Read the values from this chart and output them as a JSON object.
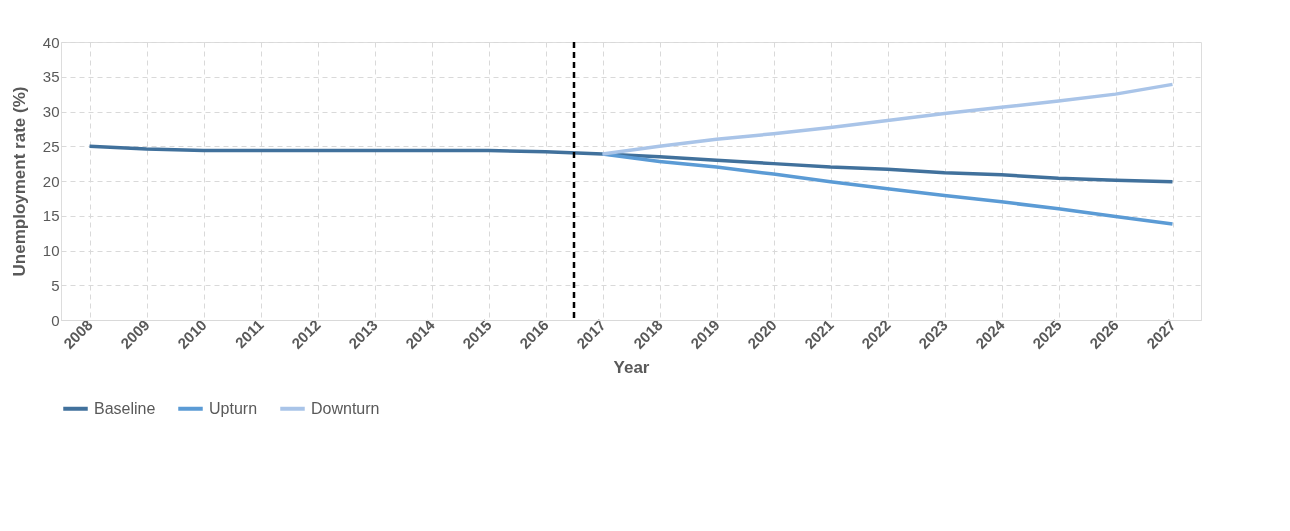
{
  "chart_data": {
    "type": "line",
    "xlabel": "Year",
    "ylabel": "Unemployment rate (%)",
    "xlim": [
      2007.5,
      2027.5
    ],
    "xticks": [
      2008,
      2009,
      2010,
      2011,
      2012,
      2013,
      2014,
      2015,
      2016,
      2017,
      2018,
      2019,
      2020,
      2021,
      2022,
      2023,
      2024,
      2025,
      2026,
      2027
    ],
    "ylim": [
      0,
      40
    ],
    "yticks": [
      0,
      5,
      10,
      15,
      20,
      25,
      30,
      35,
      40
    ],
    "grid": true,
    "legend": "bottom",
    "line_style": "solid",
    "marker": "none",
    "ref_lines": [
      {
        "axis": "x",
        "value": 2016.5,
        "color": "#000000",
        "line_style": "dashed"
      }
    ],
    "series": [
      {
        "name": "Baseline",
        "color": "#41719c",
        "x": [
          2008,
          2009,
          2010,
          2011,
          2012,
          2013,
          2014,
          2015,
          2016,
          2017,
          2018,
          2019,
          2020,
          2021,
          2022,
          2023,
          2024,
          2025,
          2026,
          2027
        ],
        "values": [
          25,
          24.6,
          24.4,
          24.4,
          24.4,
          24.4,
          24.4,
          24.4,
          24.2,
          23.9,
          23.5,
          23,
          22.5,
          22,
          21.7,
          21.2,
          20.9,
          20.4,
          20.1,
          19.9
        ]
      },
      {
        "name": "Upturn",
        "color": "#5b9bd5",
        "x": [
          2017,
          2018,
          2019,
          2020,
          2021,
          2022,
          2023,
          2024,
          2025,
          2026,
          2027
        ],
        "values": [
          23.9,
          22.8,
          22,
          21,
          19.9,
          18.9,
          17.9,
          17,
          16,
          14.9,
          13.8
        ]
      },
      {
        "name": "Downturn",
        "color": "#a9c4e8",
        "x": [
          2017,
          2018,
          2019,
          2020,
          2021,
          2022,
          2023,
          2024,
          2025,
          2026,
          2027
        ],
        "values": [
          23.9,
          25,
          26,
          26.8,
          27.7,
          28.7,
          29.7,
          30.6,
          31.5,
          32.5,
          33.9
        ]
      }
    ]
  }
}
